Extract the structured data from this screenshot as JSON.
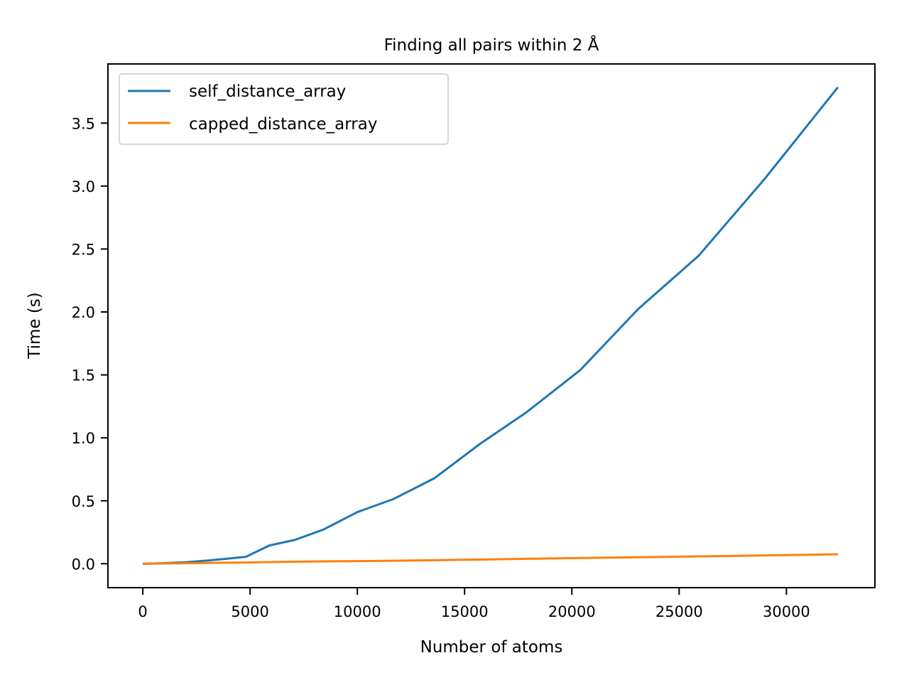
{
  "chart_data": {
    "type": "line",
    "title": "Finding all pairs within 2 Å",
    "xlabel": "Number of atoms",
    "ylabel": "Time (s)",
    "xlim": [
      -1625,
      34125
    ],
    "ylim": [
      -0.19,
      3.97
    ],
    "xticks": [
      0,
      5000,
      10000,
      15000,
      20000,
      25000,
      30000
    ],
    "yticks": [
      0.0,
      0.5,
      1.0,
      1.5,
      2.0,
      2.5,
      3.0,
      3.5
    ],
    "xtick_labels": [
      "0",
      "5000",
      "10000",
      "15000",
      "20000",
      "25000",
      "30000"
    ],
    "ytick_labels": [
      "0.0",
      "0.5",
      "1.0",
      "1.5",
      "2.0",
      "2.5",
      "3.0",
      "3.5"
    ],
    "grid": false,
    "legend_position": "top-left",
    "series": [
      {
        "name": "self_distance_array",
        "color": "#1f77b4",
        "x": [
          0,
          500,
          1000,
          2000,
          3000,
          3800,
          4800,
          5900,
          7100,
          8400,
          10000,
          11700,
          13600,
          15700,
          17900,
          20400,
          23100,
          25900,
          29000,
          32400
        ],
        "y": [
          0.0,
          0.002,
          0.005,
          0.012,
          0.025,
          0.038,
          0.055,
          0.145,
          0.19,
          0.27,
          0.41,
          0.515,
          0.68,
          0.95,
          1.205,
          1.54,
          2.025,
          2.445,
          3.06,
          3.785
        ]
      },
      {
        "name": "capped_distance_array",
        "color": "#ff7f0e",
        "x": [
          0,
          500,
          1000,
          2000,
          3000,
          3800,
          4800,
          5900,
          7100,
          8400,
          10000,
          11700,
          13600,
          15700,
          17900,
          20400,
          23100,
          25900,
          29000,
          32400
        ],
        "y": [
          0.0,
          0.001,
          0.002,
          0.004,
          0.006,
          0.008,
          0.01,
          0.013,
          0.016,
          0.019,
          0.021,
          0.024,
          0.028,
          0.033,
          0.039,
          0.046,
          0.051,
          0.058,
          0.066,
          0.075
        ]
      }
    ]
  }
}
